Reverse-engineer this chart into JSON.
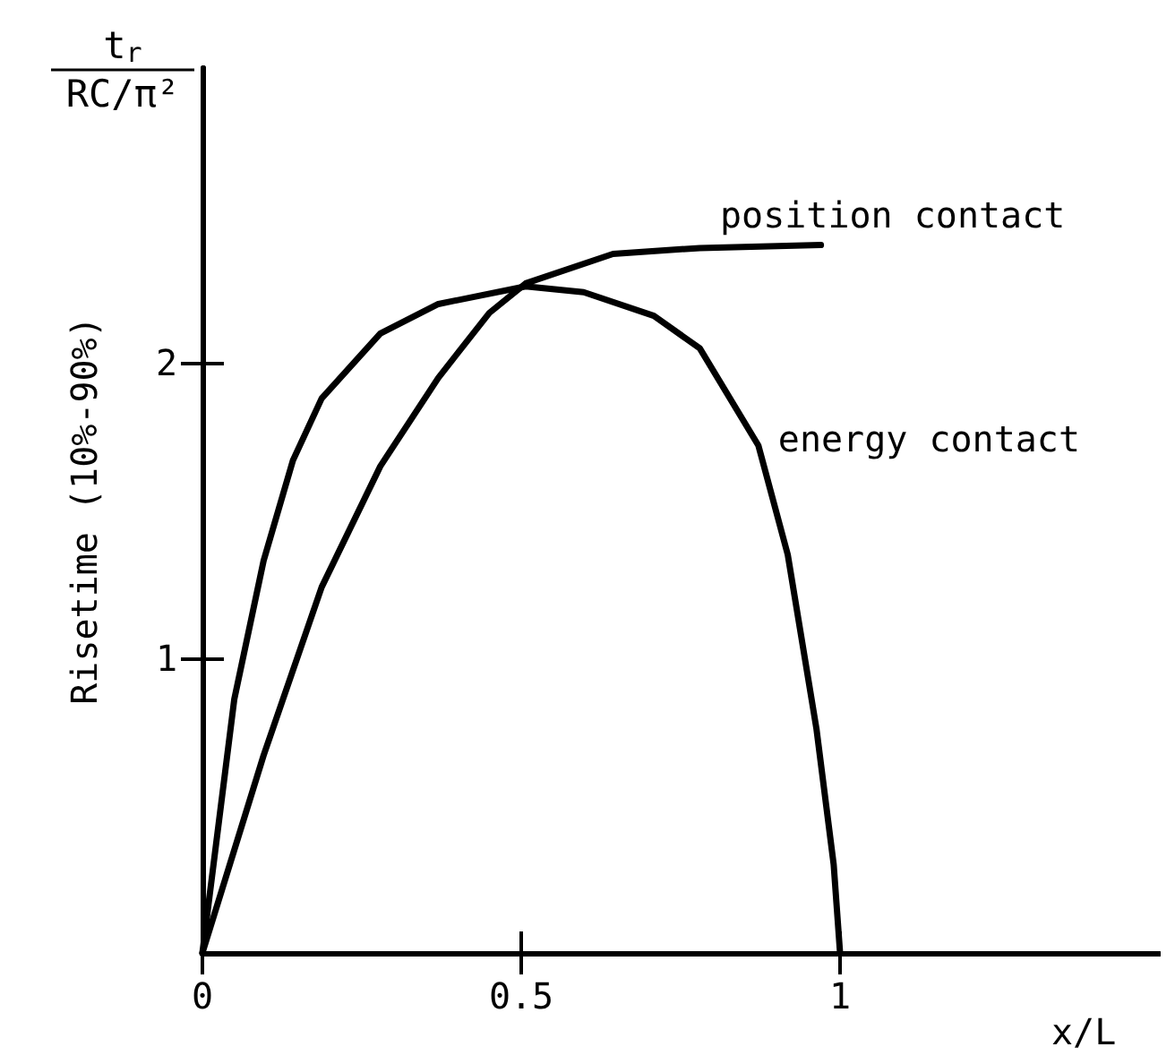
{
  "chart_data": {
    "type": "line",
    "ylabel": "Risetime (10%-90%)",
    "xlabel": "x/L",
    "annotations": [
      "t$_{r}$\nRC/π²"
    ],
    "xlim": [
      0,
      1.5
    ],
    "xticks": [
      0,
      0.5,
      1
    ],
    "ylim": [
      0,
      3
    ],
    "yticks": [
      1,
      2
    ],
    "marker": "none",
    "line_style": "solid",
    "series": [
      {
        "name": "position contact",
        "color": "#000000",
        "x": [
          0,
          0.096,
          0.187,
          0.279,
          0.37,
          0.45,
          0.507,
          0.644,
          0.78,
          0.97
        ],
        "values": [
          0,
          0.67,
          1.24,
          1.65,
          1.95,
          2.17,
          2.27,
          2.37,
          2.39,
          2.4
        ]
      },
      {
        "name": "energy contact",
        "color": "#000000",
        "x": [
          0,
          0.05,
          0.096,
          0.142,
          0.187,
          0.279,
          0.37,
          0.507,
          0.598,
          0.708,
          0.78,
          0.872,
          0.918,
          0.963,
          0.99,
          1.0
        ],
        "values": [
          0,
          0.86,
          1.33,
          1.67,
          1.88,
          2.1,
          2.2,
          2.26,
          2.24,
          2.16,
          2.05,
          1.72,
          1.35,
          0.76,
          0.3,
          0
        ]
      }
    ]
  }
}
